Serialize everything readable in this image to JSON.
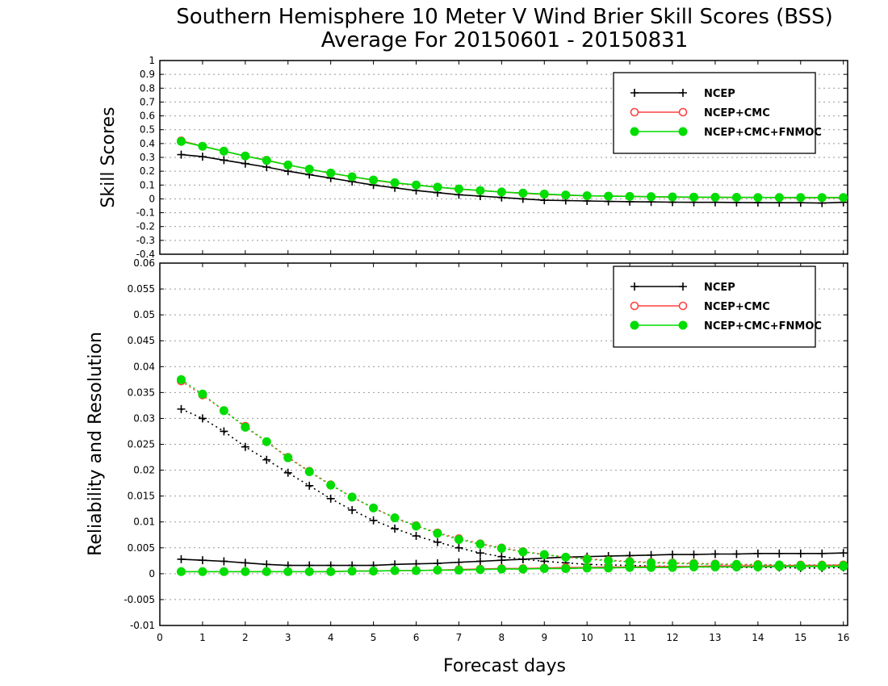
{
  "figure": {
    "title_line1": "Southern Hemisphere 10 Meter V Wind Brier Skill Scores (BSS)",
    "title_line2": "Average For 20150601 - 20150831",
    "xlabel": "Forecast days"
  },
  "colors": {
    "NCEP": "#000000",
    "NCEP+CMC": "#ff4040",
    "NCEP+CMC+FNMOC": "#00dd00",
    "grid": "#999999"
  },
  "chart_data": [
    {
      "type": "line",
      "ylabel": "Skill Scores",
      "xlim": [
        0,
        16.1
      ],
      "ylim": [
        -0.4,
        1
      ],
      "grid": true,
      "legend_placement": "top-right",
      "x_ticks": [
        "0",
        "1",
        "2",
        "3",
        "4",
        "5",
        "6",
        "7",
        "8",
        "9",
        "10",
        "11",
        "12",
        "13",
        "14",
        "15",
        "16"
      ],
      "y_ticks": [
        "-0.4",
        "-0.3",
        "-0.2",
        "-0.1",
        "0",
        "0.1",
        "0.2",
        "0.3",
        "0.4",
        "0.5",
        "0.6",
        "0.7",
        "0.8",
        "0.9",
        "1"
      ],
      "x": [
        0.5,
        1,
        1.5,
        2,
        2.5,
        3,
        3.5,
        4,
        4.5,
        5,
        5.5,
        6,
        6.5,
        7,
        7.5,
        8,
        8.5,
        9,
        9.5,
        10,
        10.5,
        11,
        11.5,
        12,
        12.5,
        13,
        13.5,
        14,
        14.5,
        15,
        15.5,
        16
      ],
      "series": [
        {
          "name": "NCEP",
          "marker": "plus",
          "style": "solid",
          "values": [
            0.32,
            0.305,
            0.28,
            0.255,
            0.23,
            0.2,
            0.175,
            0.15,
            0.125,
            0.1,
            0.08,
            0.06,
            0.045,
            0.03,
            0.02,
            0.01,
            0.0,
            -0.01,
            -0.012,
            -0.015,
            -0.018,
            -0.02,
            -0.022,
            -0.024,
            -0.025,
            -0.025,
            -0.026,
            -0.027,
            -0.028,
            -0.028,
            -0.03,
            -0.025
          ]
        },
        {
          "name": "NCEP+CMC",
          "marker": "open-circle",
          "style": "solid",
          "values": [
            0.42,
            0.38,
            0.345,
            0.31,
            0.28,
            0.245,
            0.215,
            0.185,
            0.16,
            0.135,
            0.115,
            0.1,
            0.085,
            0.07,
            0.06,
            0.05,
            0.04,
            0.033,
            0.027,
            0.022,
            0.02,
            0.018,
            0.015,
            0.013,
            0.012,
            0.011,
            0.01,
            0.01,
            0.009,
            0.008,
            0.008,
            0.008
          ]
        },
        {
          "name": "NCEP+CMC+FNMOC",
          "marker": "filled-circle",
          "style": "solid",
          "values": [
            0.415,
            0.38,
            0.345,
            0.31,
            0.278,
            0.245,
            0.215,
            0.187,
            0.16,
            0.137,
            0.117,
            0.1,
            0.085,
            0.072,
            0.06,
            0.05,
            0.042,
            0.035,
            0.028,
            0.023,
            0.02,
            0.018,
            0.016,
            0.014,
            0.013,
            0.012,
            0.011,
            0.01,
            0.01,
            0.01,
            0.01,
            0.01
          ]
        }
      ]
    },
    {
      "type": "line",
      "ylabel": "Reliability and Resolution",
      "xlim": [
        0,
        16.1
      ],
      "ylim": [
        -0.01,
        0.06
      ],
      "grid": true,
      "legend_placement": "top-right",
      "x_ticks": [
        "0",
        "1",
        "2",
        "3",
        "4",
        "5",
        "6",
        "7",
        "8",
        "9",
        "10",
        "11",
        "12",
        "13",
        "14",
        "15",
        "16"
      ],
      "y_ticks": [
        "-0.01",
        "-0.005",
        "0",
        "0.005",
        "0.01",
        "0.015",
        "0.02",
        "0.025",
        "0.03",
        "0.035",
        "0.04",
        "0.045",
        "0.05",
        "0.055",
        "0.06"
      ],
      "x": [
        0.5,
        1,
        1.5,
        2,
        2.5,
        3,
        3.5,
        4,
        4.5,
        5,
        5.5,
        6,
        6.5,
        7,
        7.5,
        8,
        8.5,
        9,
        9.5,
        10,
        10.5,
        11,
        11.5,
        12,
        12.5,
        13,
        13.5,
        14,
        14.5,
        15,
        15.5,
        16
      ],
      "series": [
        {
          "name": "NCEP",
          "metric": "resolution",
          "marker": "plus",
          "style": "dotted",
          "values": [
            0.0318,
            0.03,
            0.0275,
            0.0245,
            0.022,
            0.0195,
            0.017,
            0.0145,
            0.0123,
            0.0103,
            0.0087,
            0.0073,
            0.0061,
            0.005,
            0.004,
            0.0033,
            0.0028,
            0.0024,
            0.0021,
            0.0018,
            0.0017,
            0.0016,
            0.0015,
            0.0014,
            0.0013,
            0.0013,
            0.0012,
            0.0012,
            0.0012,
            0.0011,
            0.0011,
            0.0012
          ]
        },
        {
          "name": "NCEP",
          "metric": "reliability",
          "marker": "plus",
          "style": "solid",
          "values": [
            0.0028,
            0.0026,
            0.0024,
            0.0021,
            0.0018,
            0.0016,
            0.0016,
            0.0016,
            0.0016,
            0.0016,
            0.0018,
            0.0019,
            0.002,
            0.0022,
            0.0024,
            0.0026,
            0.0028,
            0.003,
            0.0032,
            0.0033,
            0.0034,
            0.0035,
            0.0036,
            0.0037,
            0.0037,
            0.0038,
            0.0038,
            0.0039,
            0.0039,
            0.0039,
            0.0039,
            0.004
          ]
        },
        {
          "name": "NCEP+CMC",
          "metric": "resolution",
          "marker": "open-circle",
          "style": "dotted",
          "values": [
            0.0372,
            0.0345,
            0.0315,
            0.0285,
            0.0255,
            0.0225,
            0.0198,
            0.0172,
            0.0148,
            0.0127,
            0.0108,
            0.0093,
            0.0079,
            0.0068,
            0.0058,
            0.005,
            0.0043,
            0.0037,
            0.0032,
            0.0029,
            0.0026,
            0.0024,
            0.0022,
            0.0021,
            0.002,
            0.0019,
            0.0018,
            0.0018,
            0.0017,
            0.0017,
            0.0017,
            0.0017
          ]
        },
        {
          "name": "NCEP+CMC",
          "metric": "reliability",
          "marker": "open-circle",
          "style": "solid",
          "values": [
            0.0004,
            0.0004,
            0.0004,
            0.0004,
            0.0004,
            0.0004,
            0.0004,
            0.0004,
            0.0005,
            0.0005,
            0.0006,
            0.0006,
            0.0007,
            0.0008,
            0.0009,
            0.001,
            0.001,
            0.0011,
            0.0012,
            0.0012,
            0.0013,
            0.0013,
            0.0014,
            0.0014,
            0.0014,
            0.0015,
            0.0015,
            0.0015,
            0.0015,
            0.0016,
            0.0016,
            0.0017
          ]
        },
        {
          "name": "NCEP+CMC+FNMOC",
          "metric": "resolution",
          "marker": "filled-circle",
          "style": "dotted",
          "values": [
            0.0375,
            0.0347,
            0.0315,
            0.0283,
            0.0255,
            0.0224,
            0.0197,
            0.0171,
            0.0148,
            0.0127,
            0.0108,
            0.0092,
            0.0078,
            0.0066,
            0.0057,
            0.0049,
            0.0042,
            0.0037,
            0.0032,
            0.0028,
            0.0025,
            0.0023,
            0.0021,
            0.002,
            0.0019,
            0.0018,
            0.0018,
            0.0017,
            0.0017,
            0.0016,
            0.0016,
            0.0016
          ]
        },
        {
          "name": "NCEP+CMC+FNMOC",
          "metric": "reliability",
          "marker": "filled-circle",
          "style": "solid",
          "values": [
            0.0004,
            0.0004,
            0.0004,
            0.0004,
            0.0004,
            0.0004,
            0.0004,
            0.0004,
            0.0005,
            0.0005,
            0.0006,
            0.0006,
            0.0007,
            0.0007,
            0.0008,
            0.0009,
            0.0009,
            0.001,
            0.001,
            0.0011,
            0.0011,
            0.0012,
            0.0012,
            0.0012,
            0.0013,
            0.0013,
            0.0013,
            0.0013,
            0.0014,
            0.0014,
            0.0014,
            0.0014
          ]
        }
      ]
    }
  ]
}
